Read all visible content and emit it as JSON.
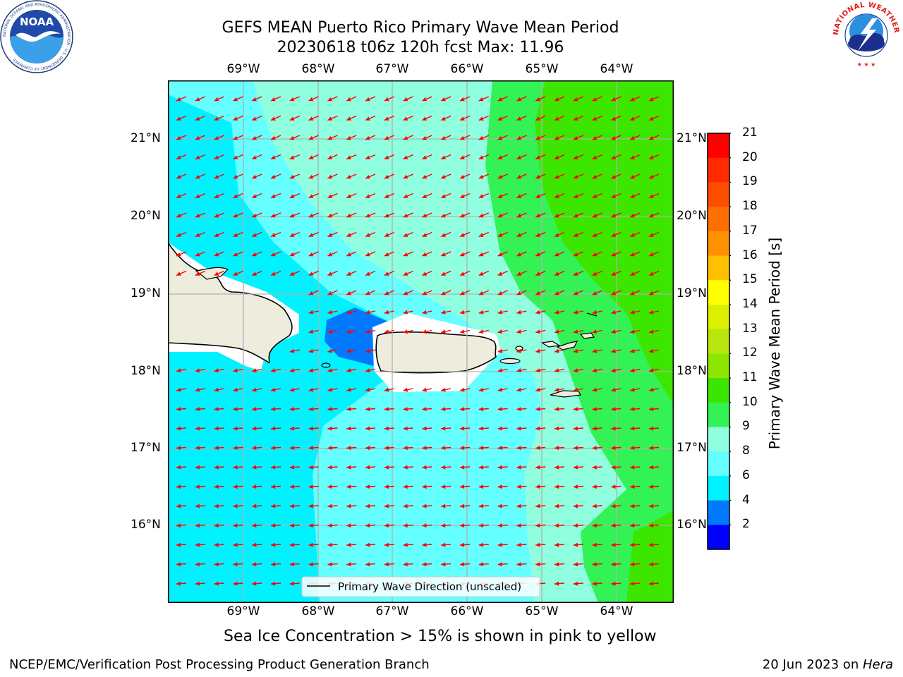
{
  "header": {
    "title_line1": "GEFS MEAN Puerto Rico Primary Wave Mean Period",
    "title_line2": "20230618 t06z 120h fcst   Max: 11.96",
    "noaa_logo_text": "NOAA",
    "noaa_ring_text": "NATIONAL OCEANIC AND ATMOSPHERIC ADMINISTRATION · U.S. DEPARTMENT OF COMMERCE",
    "nws_ring_text": "NATIONAL WEATHER SERVICE"
  },
  "map": {
    "lon_labels": [
      "69°W",
      "68°W",
      "67°W",
      "66°W",
      "65°W",
      "64°W"
    ],
    "lat_labels": [
      "21°N",
      "20°N",
      "19°N",
      "18°N",
      "17°N",
      "16°N"
    ],
    "legend_label": "Primary Wave Direction (unscaled)",
    "arrow_color": "#ff0000",
    "land_color": "#eeecdc"
  },
  "colorbar": {
    "label": "Primary Wave Mean Period [s]",
    "ticks": [
      "21",
      "20",
      "19",
      "18",
      "17",
      "16",
      "15",
      "14",
      "13",
      "12",
      "11",
      "10",
      "9",
      "8",
      "6",
      "4",
      "2"
    ],
    "colors_top_to_bottom": [
      "#ff0000",
      "#ff2a00",
      "#ff4d00",
      "#ff6f00",
      "#ff9100",
      "#ffc000",
      "#ffff00",
      "#dbf000",
      "#b9e60f",
      "#8de600",
      "#3ce600",
      "#33f255",
      "#90ffe0",
      "#66ffff",
      "#00f2ff",
      "#0079ff",
      "#0000ff"
    ]
  },
  "chart_data": {
    "type": "heatmap",
    "title": "GEFS MEAN Puerto Rico Primary Wave Mean Period",
    "subtitle": "20230618 t06z 120h fcst   Max: 11.96",
    "colorbar_label": "Primary Wave Mean Period [s]",
    "xlim": [
      "69°W",
      "64°W"
    ],
    "ylim": [
      "16°N",
      "21°N"
    ],
    "max_value": 11.96
  },
  "notes": {
    "sea_ice": "Sea Ice Concentration > 15% is shown in pink to yellow"
  },
  "footer": {
    "left": "NCEP/EMC/Verification Post Processing Product Generation Branch",
    "right_date": "20 Jun 2023 on ",
    "right_host": "Hera"
  }
}
